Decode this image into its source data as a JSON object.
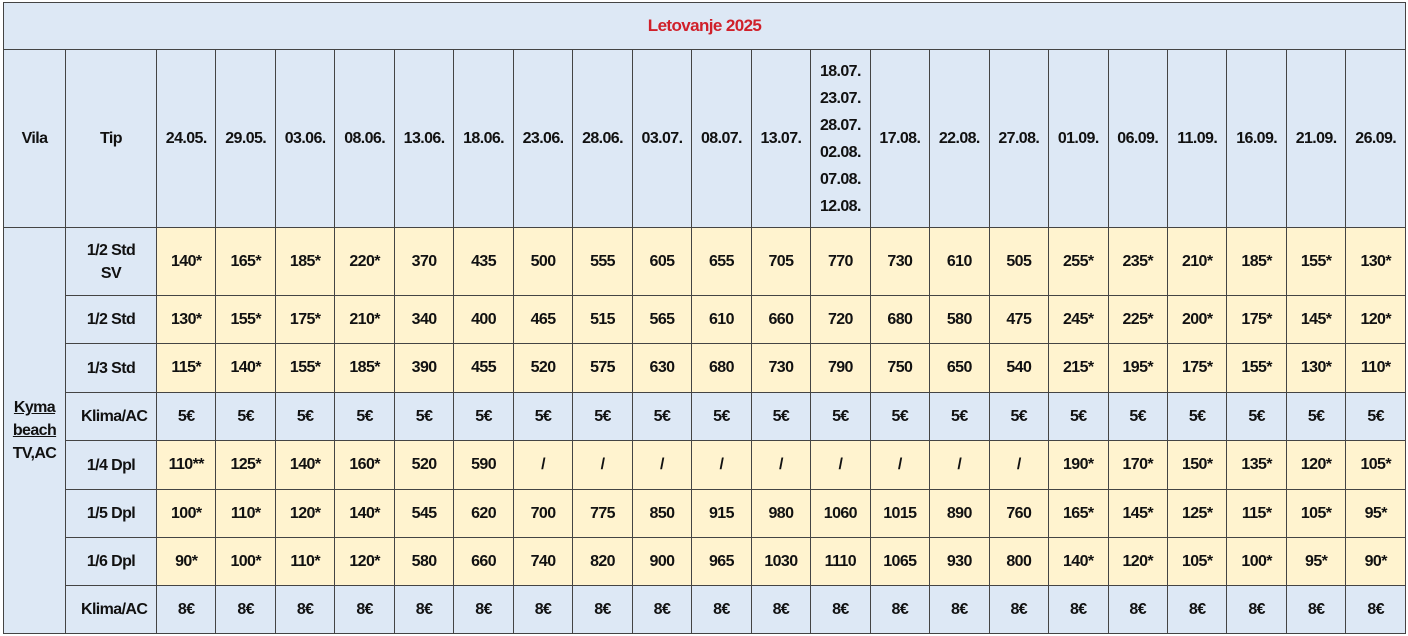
{
  "title": "Letovanje 2025",
  "header": {
    "vila": "Vila",
    "tip": "Tip",
    "dates": [
      "24.05.",
      "29.05.",
      "03.06.",
      "08.06.",
      "13.06.",
      "18.06.",
      "23.06.",
      "28.06.",
      "03.07.",
      "08.07.",
      "13.07.",
      [
        "18.07.",
        "23.07.",
        "28.07.",
        "02.08.",
        "07.08.",
        "12.08."
      ],
      "17.08.",
      "22.08.",
      "27.08.",
      "01.09.",
      "06.09.",
      "11.09.",
      "16.09.",
      "21.09.",
      "26.09."
    ]
  },
  "vila": {
    "name": "Kyma beach",
    "note": "TV,AC"
  },
  "rows": [
    {
      "tip": "1/2 Std SV",
      "values": [
        "140*",
        "165*",
        "185*",
        "220*",
        "370",
        "435",
        "500",
        "555",
        "605",
        "655",
        "705",
        "770",
        "730",
        "610",
        "505",
        "255*",
        "235*",
        "210*",
        "185*",
        "155*",
        "130*"
      ]
    },
    {
      "tip": "1/2 Std",
      "values": [
        "130*",
        "155*",
        "175*",
        "210*",
        "340",
        "400",
        "465",
        "515",
        "565",
        "610",
        "660",
        "720",
        "680",
        "580",
        "475",
        "245*",
        "225*",
        "200*",
        "175*",
        "145*",
        "120*"
      ]
    },
    {
      "tip": "1/3 Std",
      "values": [
        "115*",
        "140*",
        "155*",
        "185*",
        "390",
        "455",
        "520",
        "575",
        "630",
        "680",
        "730",
        "790",
        "750",
        "650",
        "540",
        "215*",
        "195*",
        "175*",
        "155*",
        "130*",
        "110*"
      ]
    },
    {
      "tip": "Klima/AC",
      "values": [
        "5€",
        "5€",
        "5€",
        "5€",
        "5€",
        "5€",
        "5€",
        "5€",
        "5€",
        "5€",
        "5€",
        "5€",
        "5€",
        "5€",
        "5€",
        "5€",
        "5€",
        "5€",
        "5€",
        "5€",
        "5€"
      ]
    },
    {
      "tip": "1/4 Dpl",
      "values": [
        "110**",
        "125*",
        "140*",
        "160*",
        "520",
        "590",
        "/",
        "/",
        "/",
        "/",
        "/",
        "/",
        "/",
        "/",
        "/",
        "190*",
        "170*",
        "150*",
        "135*",
        "120*",
        "105*"
      ]
    },
    {
      "tip": "1/5 Dpl",
      "values": [
        "100*",
        "110*",
        "120*",
        "140*",
        "545",
        "620",
        "700",
        "775",
        "850",
        "915",
        "980",
        "1060",
        "1015",
        "890",
        "760",
        "165*",
        "145*",
        "125*",
        "115*",
        "105*",
        "95*"
      ]
    },
    {
      "tip": "1/6 Dpl",
      "values": [
        "90*",
        "100*",
        "110*",
        "120*",
        "580",
        "660",
        "740",
        "820",
        "900",
        "965",
        "1030",
        "1110",
        "1065",
        "930",
        "800",
        "140*",
        "120*",
        "105*",
        "100*",
        "95*",
        "90*"
      ]
    },
    {
      "tip": "Klima/AC",
      "values": [
        "8€",
        "8€",
        "8€",
        "8€",
        "8€",
        "8€",
        "8€",
        "8€",
        "8€",
        "8€",
        "8€",
        "8€",
        "8€",
        "8€",
        "8€",
        "8€",
        "8€",
        "8€",
        "8€",
        "8€",
        "8€"
      ]
    }
  ]
}
